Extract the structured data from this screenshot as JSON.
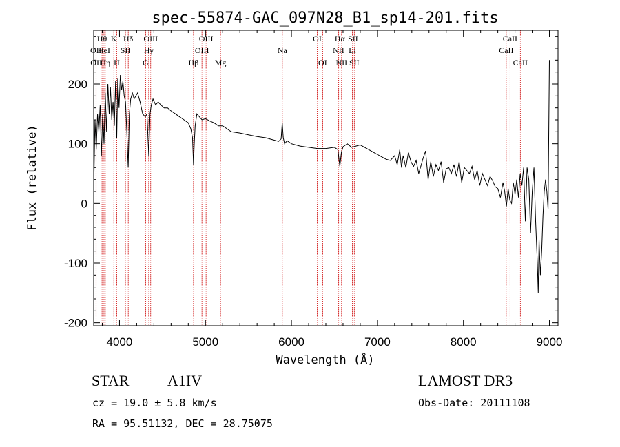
{
  "chart_data": {
    "type": "line",
    "title": "spec-55874-GAC_097N28_B1_sp14-201.fits",
    "xlabel": "Wavelength (Å)",
    "ylabel": "Flux (relative)",
    "xlim": [
      3700,
      9100
    ],
    "ylim": [
      -205,
      290
    ],
    "xticks": [
      4000,
      5000,
      6000,
      7000,
      8000,
      9000
    ],
    "yticks": [
      -200,
      -100,
      0,
      100,
      200
    ],
    "series": [
      {
        "x": [
          3700,
          3715,
          3730,
          3745,
          3760,
          3775,
          3790,
          3805,
          3820,
          3835,
          3850,
          3865,
          3880,
          3895,
          3910,
          3925,
          3940,
          3955,
          3968,
          3980,
          3995,
          4010,
          4025,
          4040,
          4055,
          4070,
          4085,
          4101,
          4115,
          4130,
          4150,
          4170,
          4190,
          4210,
          4240,
          4270,
          4300,
          4320,
          4340,
          4355,
          4370,
          4390,
          4420,
          4450,
          4480,
          4520,
          4560,
          4600,
          4650,
          4700,
          4750,
          4800,
          4830,
          4850,
          4861,
          4870,
          4880,
          4900,
          4930,
          4960,
          5000,
          5050,
          5100,
          5150,
          5200,
          5250,
          5300,
          5400,
          5500,
          5600,
          5700,
          5800,
          5850,
          5880,
          5893,
          5905,
          5920,
          5950,
          6000,
          6100,
          6200,
          6300,
          6400,
          6500,
          6540,
          6563,
          6580,
          6600,
          6650,
          6700,
          6800,
          6900,
          7000,
          7100,
          7150,
          7200,
          7230,
          7260,
          7280,
          7300,
          7330,
          7360,
          7390,
          7420,
          7450,
          7480,
          7500,
          7530,
          7560,
          7590,
          7620,
          7650,
          7680,
          7710,
          7740,
          7770,
          7800,
          7830,
          7860,
          7890,
          7920,
          7950,
          7980,
          8010,
          8040,
          8070,
          8100,
          8130,
          8160,
          8190,
          8220,
          8250,
          8280,
          8310,
          8340,
          8370,
          8400,
          8430,
          8460,
          8480,
          8500,
          8520,
          8540,
          8560,
          8580,
          8600,
          8620,
          8640,
          8660,
          8680,
          8700,
          8720,
          8740,
          8760,
          8780,
          8800,
          8820,
          8840,
          8860,
          8870,
          8880,
          8895,
          8910,
          8925,
          8940,
          8955,
          8970,
          8985,
          9000
        ],
        "y": [
          20,
          140,
          90,
          150,
          120,
          165,
          80,
          150,
          100,
          185,
          120,
          200,
          150,
          195,
          140,
          170,
          130,
          205,
          110,
          210,
          160,
          215,
          190,
          205,
          180,
          170,
          120,
          60,
          150,
          175,
          185,
          175,
          180,
          185,
          170,
          150,
          145,
          150,
          80,
          150,
          165,
          175,
          165,
          170,
          165,
          160,
          160,
          155,
          150,
          145,
          140,
          135,
          125,
          110,
          65,
          100,
          130,
          150,
          145,
          140,
          142,
          138,
          135,
          130,
          130,
          125,
          120,
          118,
          115,
          112,
          110,
          106,
          104,
          108,
          135,
          110,
          100,
          105,
          100,
          96,
          94,
          92,
          92,
          94,
          90,
          62,
          85,
          95,
          100,
          94,
          98,
          90,
          82,
          74,
          72,
          80,
          65,
          90,
          60,
          80,
          60,
          85,
          70,
          62,
          72,
          50,
          60,
          75,
          88,
          40,
          70,
          45,
          65,
          55,
          70,
          35,
          58,
          60,
          50,
          65,
          45,
          70,
          35,
          60,
          55,
          50,
          62,
          40,
          55,
          30,
          50,
          40,
          30,
          45,
          38,
          28,
          25,
          10,
          35,
          20,
          -5,
          25,
          5,
          0,
          35,
          15,
          40,
          10,
          50,
          30,
          60,
          -30,
          60,
          40,
          -50,
          20,
          60,
          -30,
          -100,
          -150,
          -60,
          -120,
          -80,
          -20,
          20,
          40,
          20,
          -10,
          240
        ]
      }
    ],
    "lines": [
      {
        "label": "Hθ",
        "wave": 3797,
        "row": 0
      },
      {
        "label": "OII",
        "wave": 3727,
        "row": 1
      },
      {
        "label": "OII",
        "wave": 3729,
        "row": 2
      },
      {
        "label": "HeI",
        "wave": 3820,
        "row": 1
      },
      {
        "label": "Hη",
        "wave": 3835,
        "row": 2
      },
      {
        "label": "K",
        "wave": 3934,
        "row": 0
      },
      {
        "label": "H",
        "wave": 3968,
        "row": 2
      },
      {
        "label": "SII",
        "wave": 4069,
        "row": 1
      },
      {
        "label": "Hδ",
        "wave": 4102,
        "row": 0
      },
      {
        "label": "OIII",
        "wave": 4363,
        "row": 0
      },
      {
        "label": "Hγ",
        "wave": 4340,
        "row": 1
      },
      {
        "label": "G",
        "wave": 4304,
        "row": 2
      },
      {
        "label": "Hβ",
        "wave": 4861,
        "row": 2
      },
      {
        "label": "OIII",
        "wave": 4959,
        "row": 1
      },
      {
        "label": "OIII",
        "wave": 5007,
        "row": 0
      },
      {
        "label": "Mg",
        "wave": 5175,
        "row": 2
      },
      {
        "label": "Na",
        "wave": 5894,
        "row": 1
      },
      {
        "label": "OI",
        "wave": 6300,
        "row": 0
      },
      {
        "label": "OI",
        "wave": 6363,
        "row": 2
      },
      {
        "label": "Hα",
        "wave": 6563,
        "row": 0
      },
      {
        "label": "NII",
        "wave": 6548,
        "row": 1
      },
      {
        "label": "NII",
        "wave": 6583,
        "row": 2
      },
      {
        "label": "SII",
        "wave": 6716,
        "row": 0
      },
      {
        "label": "Li",
        "wave": 6708,
        "row": 1
      },
      {
        "label": "SII",
        "wave": 6731,
        "row": 2
      },
      {
        "label": "CaII",
        "wave": 8542,
        "row": 0
      },
      {
        "label": "CaII",
        "wave": 8498,
        "row": 1
      },
      {
        "label": "CaII",
        "wave": 8662,
        "row": 2
      }
    ]
  },
  "info": {
    "objtype": "STAR",
    "subclass": "A1IV",
    "survey": "LAMOST DR3",
    "cz": "cz = 19.0 ± 5.8 km/s",
    "obsdate": "Obs-Date: 20111108",
    "radec": "RA =  95.51132, DEC =  28.75075"
  },
  "colors": {
    "line_marker": "#cc0000",
    "spectrum": "#000000"
  }
}
